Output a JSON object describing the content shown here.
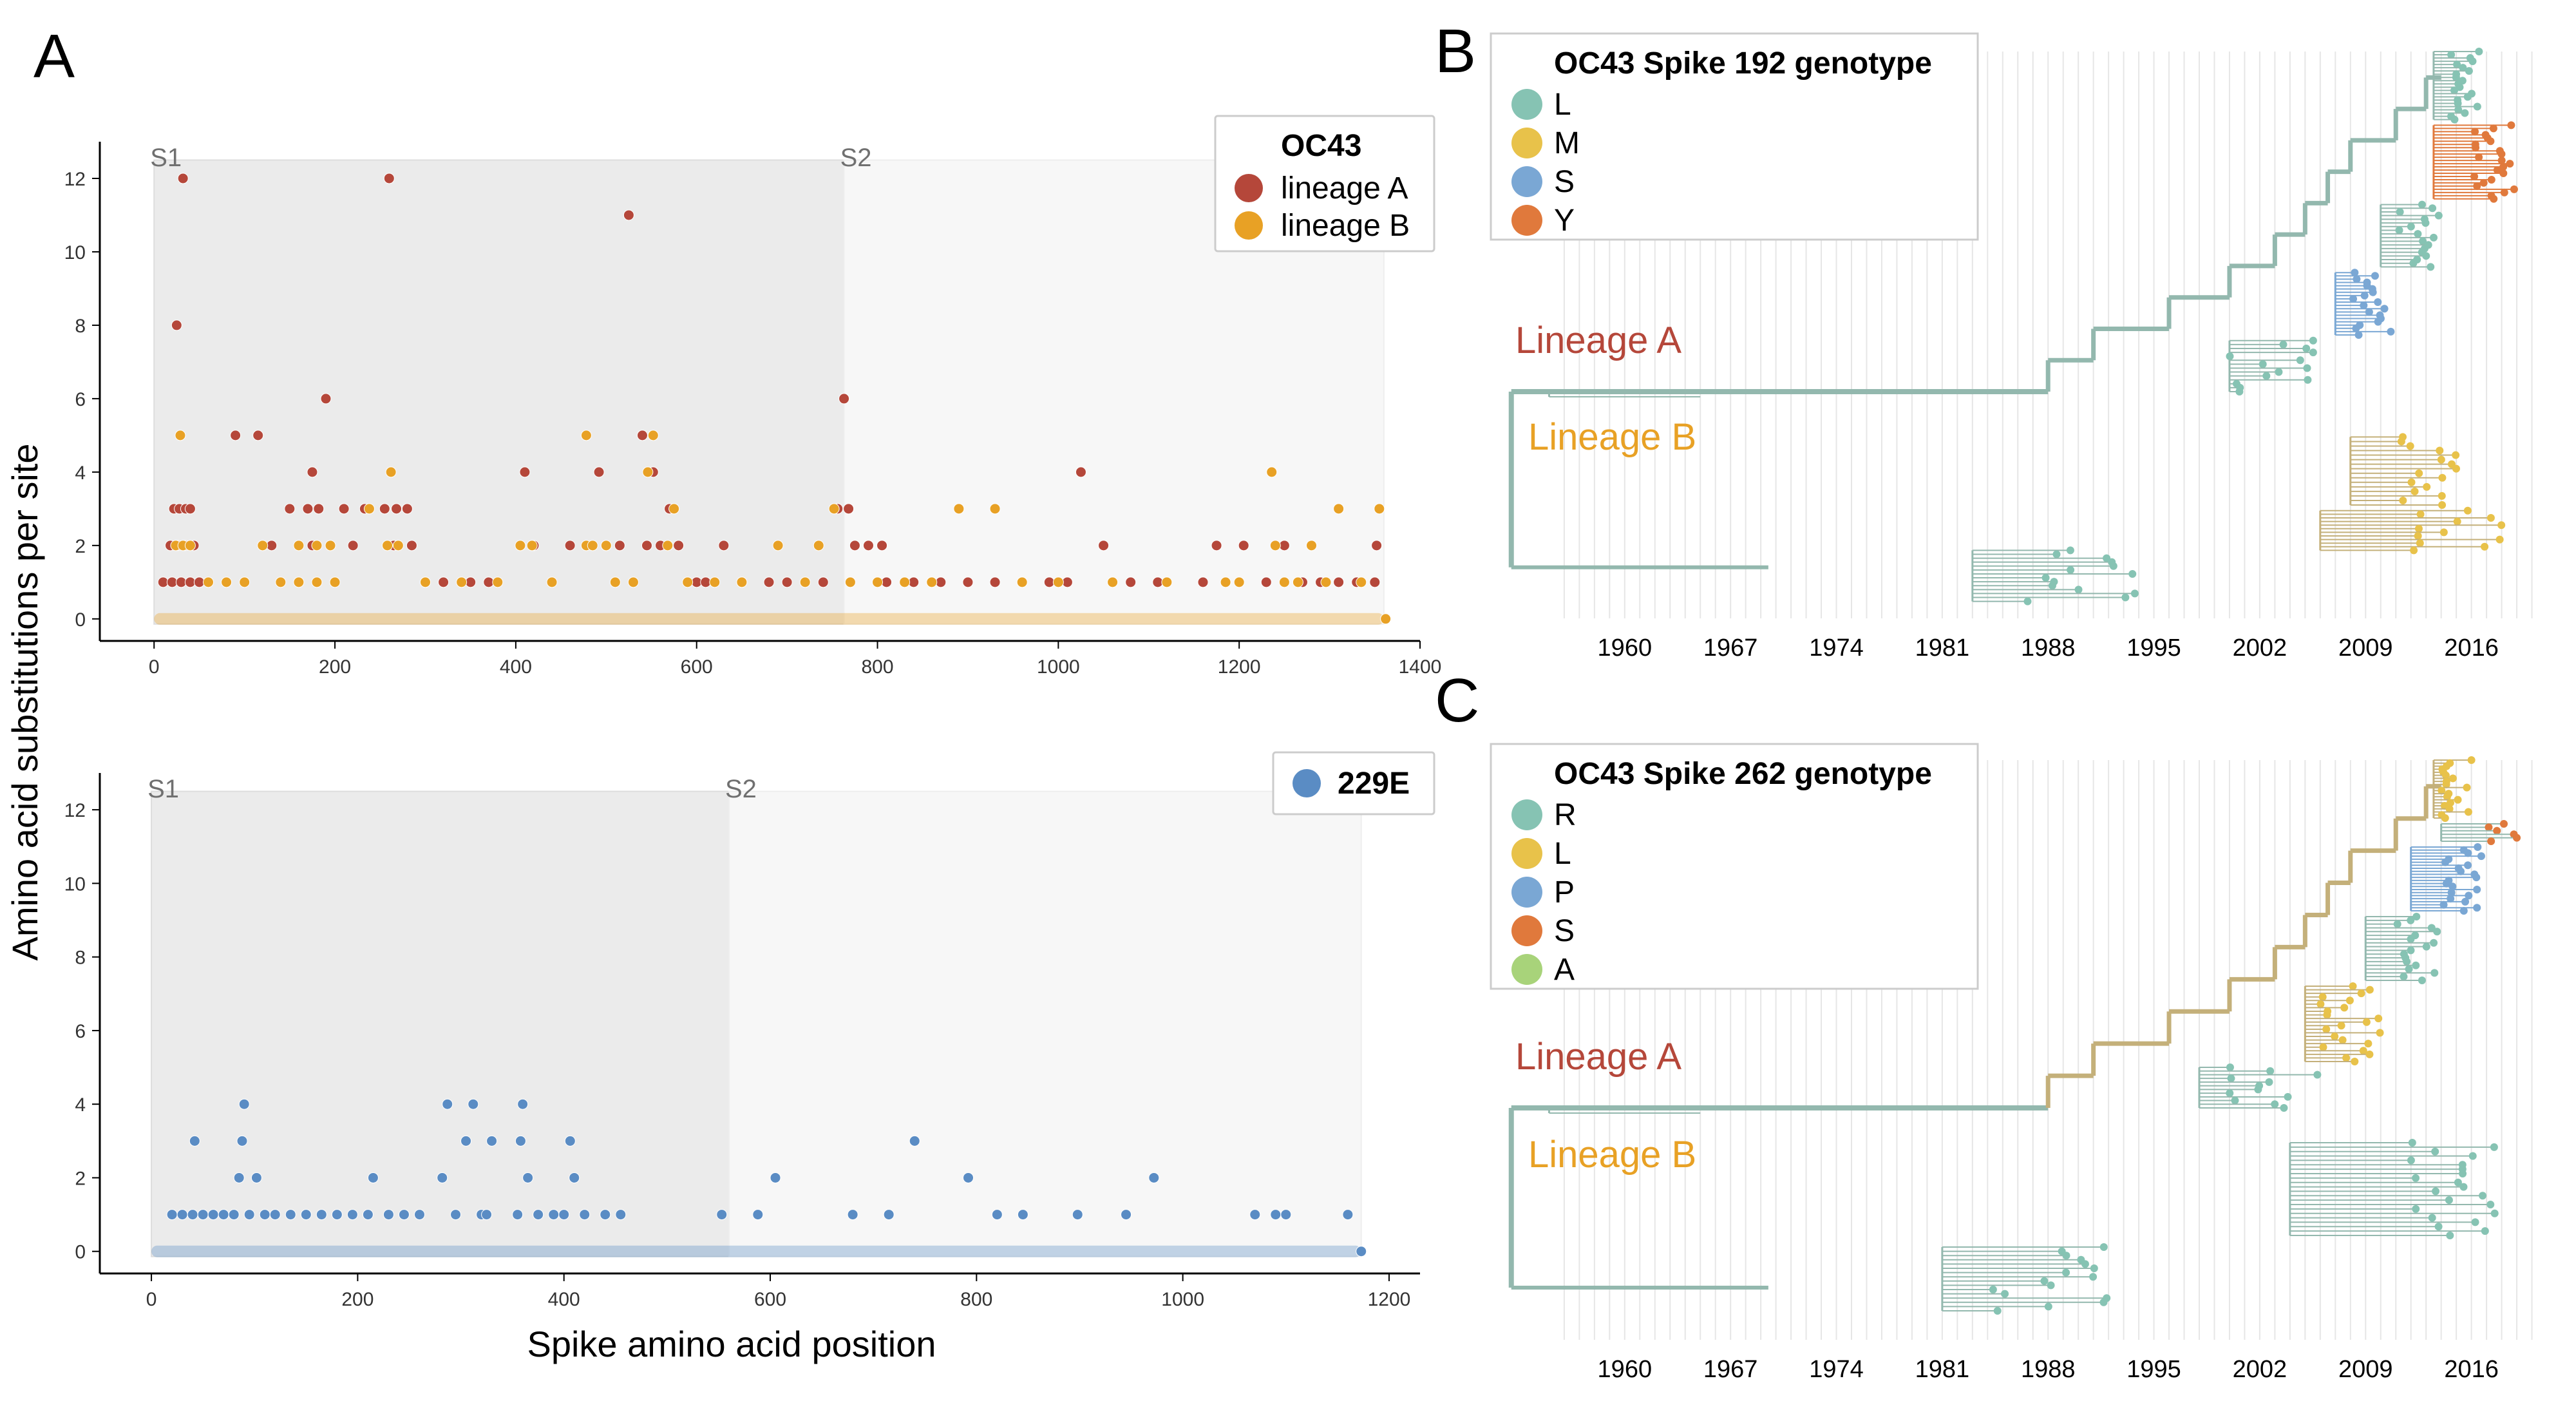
{
  "panels": {
    "a": "A",
    "b": "B",
    "c": "C"
  },
  "colors": {
    "lineage_a": "#b5473a",
    "lineage_b": "#e8a125",
    "e229": "#5a8cc4",
    "geno_teal": "#86c3b3",
    "geno_yellow": "#e8c24a",
    "geno_blue": "#7aa7d4",
    "geno_orange": "#e0793c",
    "geno_green": "#a8d37a",
    "tree_teal": "#93b8ae",
    "tree_tan": "#c4b07a"
  },
  "chart_data": [
    {
      "type": "scatter",
      "panel": "A-top",
      "xlabel": "Spike amino acid position",
      "ylabel": "Amino acid substitutions per site",
      "xlim": [
        -60,
        1400
      ],
      "ylim": [
        -0.6,
        13
      ],
      "x_ticks": [
        "0",
        "200",
        "400",
        "600",
        "800",
        "1000",
        "1200",
        "1400"
      ],
      "x_tick_values": [
        0,
        200,
        400,
        600,
        800,
        1000,
        1200,
        1400
      ],
      "y_ticks": [
        "0",
        "2",
        "4",
        "6",
        "8",
        "10",
        "12"
      ],
      "y_tick_values": [
        0,
        2,
        4,
        6,
        8,
        10,
        12
      ],
      "regions": [
        {
          "label": "S1",
          "x_start": 0,
          "x_end": 763
        },
        {
          "label": "S2",
          "x_start": 763,
          "x_end": 1360
        }
      ],
      "ymax_region": 12.5,
      "legend": {
        "title": "OC43",
        "entries": [
          {
            "label": "lineage A",
            "color": "#b5473a"
          },
          {
            "label": "lineage B",
            "color": "#e8a125"
          }
        ]
      },
      "series": [
        {
          "name": "lineage A",
          "color": "#b5473a",
          "points": [
            [
              25,
              8
            ],
            [
              32,
              12
            ],
            [
              22,
              3
            ],
            [
              28,
              3
            ],
            [
              35,
              3
            ],
            [
              40,
              3
            ],
            [
              18,
              2
            ],
            [
              26,
              2
            ],
            [
              34,
              2
            ],
            [
              44,
              2
            ],
            [
              10,
              1
            ],
            [
              20,
              1
            ],
            [
              30,
              1
            ],
            [
              40,
              1
            ],
            [
              50,
              1
            ],
            [
              90,
              5
            ],
            [
              115,
              5
            ],
            [
              150,
              3
            ],
            [
              170,
              3
            ],
            [
              175,
              4
            ],
            [
              182,
              3
            ],
            [
              190,
              6
            ],
            [
              210,
              3
            ],
            [
              260,
              12
            ],
            [
              255,
              3
            ],
            [
              268,
              3
            ],
            [
              280,
              3
            ],
            [
              233,
              3
            ],
            [
              130,
              2
            ],
            [
              175,
              2
            ],
            [
              220,
              2
            ],
            [
              265,
              2
            ],
            [
              285,
              2
            ],
            [
              300,
              1
            ],
            [
              320,
              1
            ],
            [
              350,
              1
            ],
            [
              370,
              1
            ],
            [
              410,
              4
            ],
            [
              420,
              2
            ],
            [
              460,
              2
            ],
            [
              492,
              4
            ],
            [
              500,
              2
            ],
            [
              515,
              2
            ],
            [
              525,
              11
            ],
            [
              540,
              5
            ],
            [
              545,
              2
            ],
            [
              552,
              4
            ],
            [
              560,
              2
            ],
            [
              570,
              3
            ],
            [
              580,
              2
            ],
            [
              600,
              1
            ],
            [
              610,
              1
            ],
            [
              630,
              2
            ],
            [
              650,
              1
            ],
            [
              680,
              1
            ],
            [
              700,
              1
            ],
            [
              720,
              1
            ],
            [
              740,
              1
            ],
            [
              756,
              3
            ],
            [
              763,
              6
            ],
            [
              768,
              3
            ],
            [
              775,
              2
            ],
            [
              790,
              2
            ],
            [
              805,
              2
            ],
            [
              810,
              1
            ],
            [
              840,
              1
            ],
            [
              870,
              1
            ],
            [
              900,
              1
            ],
            [
              930,
              1
            ],
            [
              960,
              1
            ],
            [
              990,
              1
            ],
            [
              1010,
              1
            ],
            [
              1025,
              4
            ],
            [
              1050,
              2
            ],
            [
              1080,
              1
            ],
            [
              1110,
              1
            ],
            [
              1160,
              1
            ],
            [
              1175,
              2
            ],
            [
              1205,
              2
            ],
            [
              1230,
              1
            ],
            [
              1250,
              2
            ],
            [
              1270,
              1
            ],
            [
              1290,
              1
            ],
            [
              1310,
              1
            ],
            [
              1330,
              1
            ],
            [
              1350,
              1
            ],
            [
              1352,
              2
            ]
          ]
        },
        {
          "name": "lineage B",
          "color": "#e8a125",
          "points": [
            [
              29,
              5
            ],
            [
              24,
              2
            ],
            [
              32,
              2
            ],
            [
              40,
              2
            ],
            [
              60,
              1
            ],
            [
              80,
              1
            ],
            [
              100,
              1
            ],
            [
              140,
              1
            ],
            [
              160,
              1
            ],
            [
              180,
              1
            ],
            [
              200,
              1
            ],
            [
              120,
              2
            ],
            [
              160,
              2
            ],
            [
              180,
              2
            ],
            [
              195,
              2
            ],
            [
              238,
              3
            ],
            [
              262,
              4
            ],
            [
              258,
              2
            ],
            [
              270,
              2
            ],
            [
              300,
              1
            ],
            [
              340,
              1
            ],
            [
              380,
              1
            ],
            [
              405,
              2
            ],
            [
              418,
              2
            ],
            [
              440,
              1
            ],
            [
              478,
              2
            ],
            [
              478,
              5
            ],
            [
              485,
              2
            ],
            [
              500,
              2
            ],
            [
              510,
              1
            ],
            [
              530,
              1
            ],
            [
              546,
              4
            ],
            [
              552,
              5
            ],
            [
              568,
              2
            ],
            [
              575,
              3
            ],
            [
              590,
              1
            ],
            [
              620,
              1
            ],
            [
              650,
              1
            ],
            [
              690,
              2
            ],
            [
              720,
              1
            ],
            [
              735,
              2
            ],
            [
              752,
              3
            ],
            [
              770,
              1
            ],
            [
              800,
              1
            ],
            [
              830,
              1
            ],
            [
              860,
              1
            ],
            [
              890,
              3
            ],
            [
              930,
              3
            ],
            [
              960,
              1
            ],
            [
              1000,
              1
            ],
            [
              1060,
              1
            ],
            [
              1120,
              1
            ],
            [
              1185,
              1
            ],
            [
              1200,
              1
            ],
            [
              1236,
              4
            ],
            [
              1240,
              2
            ],
            [
              1250,
              1
            ],
            [
              1265,
              1
            ],
            [
              1280,
              2
            ],
            [
              1296,
              1
            ],
            [
              1310,
              3
            ],
            [
              1335,
              1
            ],
            [
              1355,
              3
            ],
            [
              1362,
              0
            ]
          ]
        }
      ]
    },
    {
      "type": "scatter",
      "panel": "A-bottom",
      "xlabel": "Spike amino acid position",
      "ylabel": "Amino acid substitutions per site",
      "xlim": [
        -50,
        1230
      ],
      "ylim": [
        -0.6,
        13
      ],
      "x_ticks": [
        "0",
        "200",
        "400",
        "600",
        "800",
        "1000",
        "1200"
      ],
      "x_tick_values": [
        0,
        200,
        400,
        600,
        800,
        1000,
        1200
      ],
      "y_ticks": [
        "0",
        "2",
        "4",
        "6",
        "8",
        "10",
        "12"
      ],
      "y_tick_values": [
        0,
        2,
        4,
        6,
        8,
        10,
        12
      ],
      "regions": [
        {
          "label": "S1",
          "x_start": 0,
          "x_end": 560
        },
        {
          "label": "S2",
          "x_start": 560,
          "x_end": 1173
        }
      ],
      "ymax_region": 12.5,
      "legend": {
        "title": "229E",
        "entries": [
          {
            "label": "229E",
            "color": "#5a8cc4"
          }
        ]
      },
      "series": [
        {
          "name": "229E",
          "color": "#5a8cc4",
          "points": [
            [
              42,
              3
            ],
            [
              90,
              4
            ],
            [
              88,
              3
            ],
            [
              85,
              2
            ],
            [
              102,
              2
            ],
            [
              20,
              1
            ],
            [
              30,
              1
            ],
            [
              40,
              1
            ],
            [
              50,
              1
            ],
            [
              60,
              1
            ],
            [
              70,
              1
            ],
            [
              80,
              1
            ],
            [
              95,
              1
            ],
            [
              110,
              1
            ],
            [
              120,
              1
            ],
            [
              135,
              1
            ],
            [
              150,
              1
            ],
            [
              165,
              1
            ],
            [
              180,
              1
            ],
            [
              195,
              1
            ],
            [
              210,
              1
            ],
            [
              215,
              2
            ],
            [
              230,
              1
            ],
            [
              245,
              1
            ],
            [
              260,
              1
            ],
            [
              282,
              2
            ],
            [
              287,
              4
            ],
            [
              295,
              1
            ],
            [
              305,
              3
            ],
            [
              312,
              4
            ],
            [
              320,
              1
            ],
            [
              325,
              1
            ],
            [
              330,
              3
            ],
            [
              355,
              1
            ],
            [
              360,
              4
            ],
            [
              358,
              3
            ],
            [
              365,
              2
            ],
            [
              375,
              1
            ],
            [
              390,
              1
            ],
            [
              400,
              1
            ],
            [
              406,
              3
            ],
            [
              410,
              2
            ],
            [
              420,
              1
            ],
            [
              440,
              1
            ],
            [
              455,
              1
            ],
            [
              553,
              1
            ],
            [
              588,
              1
            ],
            [
              605,
              2
            ],
            [
              680,
              1
            ],
            [
              715,
              1
            ],
            [
              740,
              3
            ],
            [
              792,
              2
            ],
            [
              820,
              1
            ],
            [
              845,
              1
            ],
            [
              898,
              1
            ],
            [
              945,
              1
            ],
            [
              972,
              2
            ],
            [
              1070,
              1
            ],
            [
              1090,
              1
            ],
            [
              1100,
              1
            ],
            [
              1160,
              1
            ],
            [
              1173,
              0
            ]
          ]
        }
      ]
    }
  ],
  "trees": {
    "years": [
      "1960",
      "1967",
      "1974",
      "1981",
      "1988",
      "1995",
      "2002",
      "2009",
      "2016"
    ],
    "year_values": [
      1960,
      1967,
      1974,
      1981,
      1988,
      1995,
      2002,
      2009,
      2016
    ],
    "lineage_a_label": "Lineage A",
    "lineage_b_label": "Lineage B",
    "b": {
      "title": "OC43 Spike 192 genotype",
      "entries": [
        {
          "label": "L",
          "color": "#86c3b3"
        },
        {
          "label": "M",
          "color": "#e8c24a"
        },
        {
          "label": "S",
          "color": "#7aa7d4"
        },
        {
          "label": "Y",
          "color": "#e0793c"
        }
      ]
    },
    "c": {
      "title": "OC43 Spike 262 genotype",
      "entries": [
        {
          "label": "R",
          "color": "#86c3b3"
        },
        {
          "label": "L",
          "color": "#e8c24a"
        },
        {
          "label": "P",
          "color": "#7aa7d4"
        },
        {
          "label": "S",
          "color": "#e0793c"
        },
        {
          "label": "A",
          "color": "#a8d37a"
        }
      ]
    }
  }
}
